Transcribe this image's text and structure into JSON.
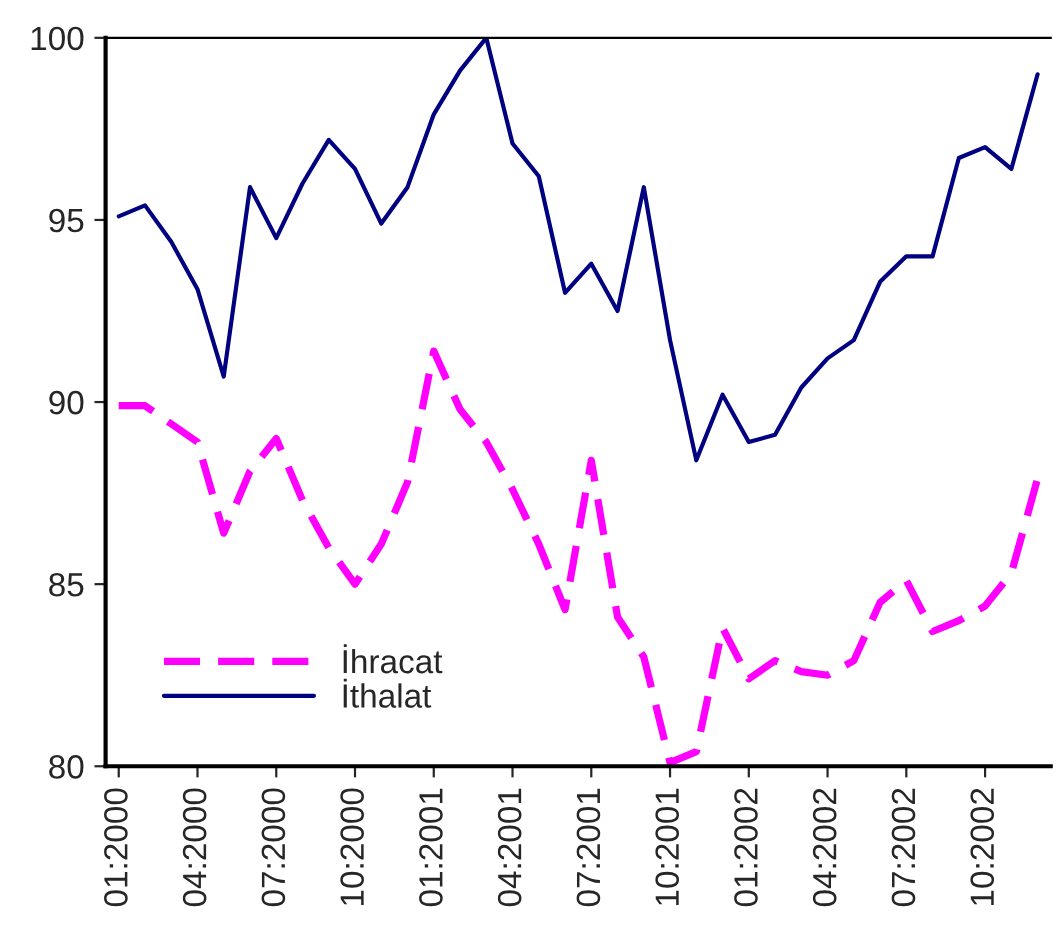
{
  "chart_data": {
    "type": "line",
    "categories": [
      "01:2000",
      null,
      null,
      "04:2000",
      null,
      null,
      "07:2000",
      null,
      null,
      "10:2000",
      null,
      null,
      "01:2001",
      null,
      null,
      "04:2001",
      null,
      null,
      "07:2001",
      null,
      null,
      "10:2001",
      null,
      null,
      "01:2002",
      null,
      null,
      "04:2002",
      null,
      null,
      "07:2002",
      null,
      null,
      "10:2002",
      null,
      null
    ],
    "series": [
      {
        "name": "İhracat",
        "color": "#ff00ff",
        "line_style": "dashed",
        "values": [
          89.9,
          89.9,
          89.4,
          88.9,
          86.4,
          88.1,
          89.0,
          87.3,
          86.0,
          85.0,
          86.1,
          87.8,
          91.4,
          89.8,
          88.9,
          87.6,
          86.1,
          84.3,
          88.4,
          84.1,
          83.0,
          80.1,
          80.4,
          83.8,
          82.4,
          82.9,
          82.6,
          82.5,
          82.9,
          84.5,
          85.1,
          83.7,
          84.0,
          84.4,
          85.3,
          87.9
        ]
      },
      {
        "name": "İthalat",
        "color": "#000080",
        "line_style": "solid",
        "values": [
          95.1,
          95.4,
          94.4,
          93.1,
          90.7,
          95.9,
          94.5,
          96.0,
          97.2,
          96.4,
          94.9,
          95.9,
          97.9,
          99.1,
          100.0,
          97.1,
          96.2,
          93.0,
          93.8,
          92.5,
          95.9,
          91.7,
          88.4,
          90.2,
          88.9,
          89.1,
          90.4,
          91.2,
          91.7,
          93.3,
          94.0,
          94.0,
          96.7,
          97.0,
          96.4,
          99.0
        ]
      }
    ],
    "ylim": [
      80,
      100
    ],
    "yticks": [
      80,
      85,
      90,
      95,
      100
    ],
    "grid": false,
    "legend": "bottom left",
    "marker": "none"
  }
}
